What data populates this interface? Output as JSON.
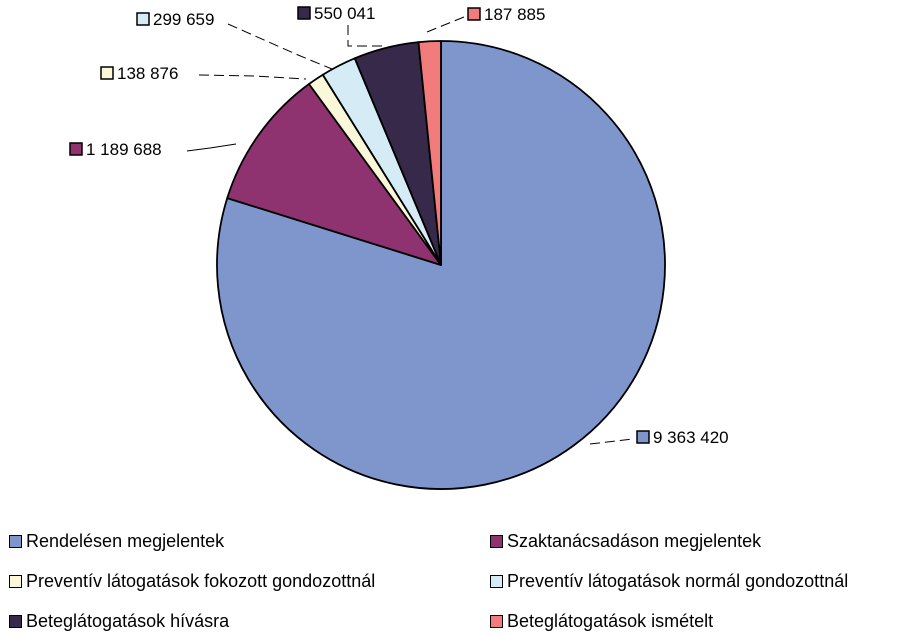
{
  "chart_data": {
    "type": "pie",
    "title": "",
    "slices": [
      {
        "label": "Rendelésen megjelentek",
        "value": 9363420,
        "value_text": "9 363 420",
        "color": "#7f96cc"
      },
      {
        "label": "Szaktanácsadáson megjelentek",
        "value": 1189688,
        "value_text": "1 189 688",
        "color": "#8e3270"
      },
      {
        "label": "Preventív látogatások fokozott gondozottnál",
        "value": 138876,
        "value_text": "138 876",
        "color": "#fbf8da"
      },
      {
        "label": "Preventív látogatások normál gondozottnál",
        "value": 299659,
        "value_text": "299 659",
        "color": "#d5ecf7"
      },
      {
        "label": "Beteglátogatások hívásra",
        "value": 550041,
        "value_text": "550 041",
        "color": "#362949"
      },
      {
        "label": "Beteglátogatások ismételt",
        "value": 187885,
        "value_text": "187 885",
        "color": "#f27b7b"
      }
    ],
    "start_angle": "12 o'clock",
    "direction": "clockwise",
    "legend_position": "bottom"
  }
}
